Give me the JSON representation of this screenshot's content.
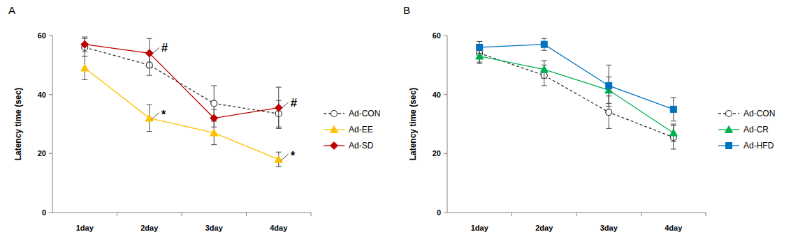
{
  "chart_data": [
    {
      "type": "line",
      "title": "A",
      "y_label": "Latency time (sec)",
      "categories": [
        "1day",
        "2day",
        "3day",
        "4day"
      ],
      "ylim": [
        0,
        60
      ],
      "yticks": [
        0,
        20,
        40,
        60
      ],
      "legend": "right",
      "grid": false,
      "series": [
        {
          "name": "Ad-CON",
          "color": "#333333",
          "marker": "open-circle",
          "line_style": "dashed",
          "values": [
            56,
            50,
            37,
            33.5
          ],
          "errors": [
            3,
            3.5,
            6,
            4.5
          ]
        },
        {
          "name": "Ad-EE",
          "color": "#ffc000",
          "marker": "triangle",
          "line_style": "solid",
          "values": [
            49,
            32,
            27,
            18
          ],
          "errors": [
            4,
            4.5,
            4,
            2.5
          ]
        },
        {
          "name": "Ad-SD",
          "color": "#c00000",
          "marker": "diamond",
          "line_style": "solid",
          "values": [
            57,
            54,
            32,
            35.5
          ],
          "errors": [
            2.5,
            5,
            3,
            7
          ]
        }
      ],
      "annotations": [
        {
          "text": "#",
          "series": "Ad-SD",
          "category": "2day"
        },
        {
          "text": "*",
          "series": "Ad-EE",
          "category": "2day"
        },
        {
          "text": "#",
          "series": "Ad-SD",
          "category": "4day"
        },
        {
          "text": "*",
          "series": "Ad-EE",
          "category": "4day"
        }
      ]
    },
    {
      "type": "line",
      "title": "B",
      "y_label": "Latency time (sec)",
      "categories": [
        "1day",
        "2day",
        "3day",
        "4day"
      ],
      "ylim": [
        0,
        60
      ],
      "yticks": [
        0,
        20,
        40,
        60
      ],
      "legend": "right",
      "grid": false,
      "series": [
        {
          "name": "Ad-CON",
          "color": "#333333",
          "marker": "open-circle",
          "line_style": "dashed",
          "values": [
            54,
            46.5,
            34,
            25.5
          ],
          "errors": [
            3,
            3.5,
            5.5,
            4
          ]
        },
        {
          "name": "Ad-CR",
          "color": "#00b050",
          "marker": "triangle",
          "line_style": "solid",
          "values": [
            53,
            48.5,
            41.5,
            27
          ],
          "errors": [
            2.5,
            3,
            4.5,
            3
          ]
        },
        {
          "name": "Ad-HFD",
          "color": "#0070c0",
          "marker": "square",
          "line_style": "solid",
          "values": [
            56,
            57,
            43,
            35
          ],
          "errors": [
            2,
            2,
            7,
            4
          ]
        }
      ],
      "annotations": []
    }
  ]
}
